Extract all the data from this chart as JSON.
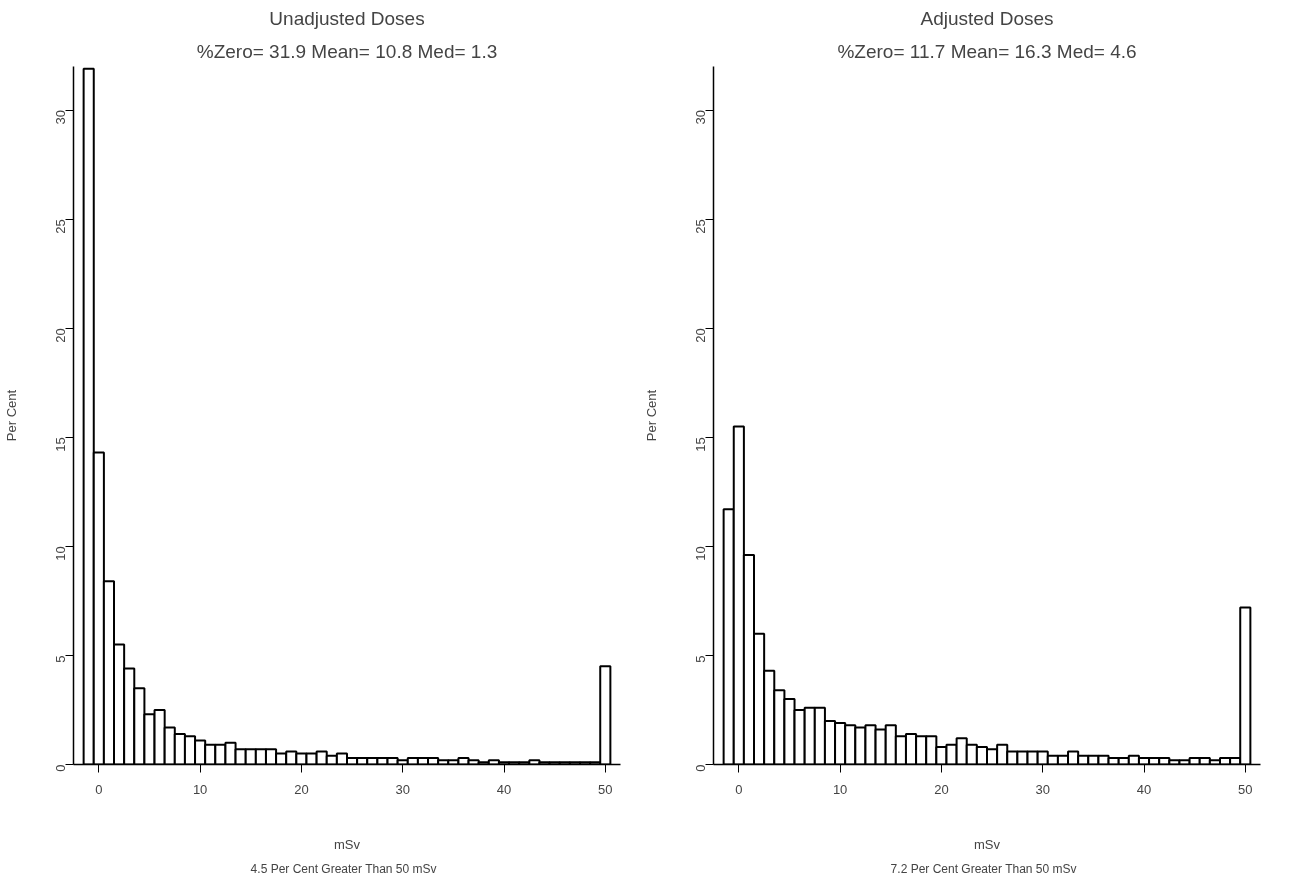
{
  "chart_data": [
    {
      "type": "histogram",
      "title": "Unadjusted Doses",
      "subtitle": "%Zero= 31.9 Mean= 10.8 Med= 1.3",
      "xlabel": "mSv",
      "ylabel": "Per Cent",
      "color": "#ffffff",
      "grid": false,
      "bins": [
        -1.5,
        -0.5,
        0.5,
        1.5,
        2.5,
        3.5,
        4.5,
        5.5,
        6.5,
        7.5,
        8.5,
        9.5,
        10.5,
        11.5,
        12.5,
        13.5,
        14.5,
        15.5,
        16.5,
        17.5,
        18.5,
        19.5,
        20.5,
        21.5,
        22.5,
        23.5,
        24.5,
        25.5,
        26.5,
        27.5,
        28.5,
        29.5,
        30.5,
        31.5,
        32.5,
        33.5,
        34.5,
        35.5,
        36.5,
        37.5,
        38.5,
        39.5,
        40.5,
        41.5,
        42.5,
        43.5,
        44.5,
        45.5,
        46.5,
        47.5,
        48.5,
        49.5,
        50.5
      ],
      "values": [
        31.9,
        14.3,
        8.4,
        5.5,
        4.4,
        3.5,
        2.3,
        2.5,
        1.7,
        1.4,
        1.3,
        1.1,
        0.9,
        0.9,
        1.0,
        0.7,
        0.7,
        0.7,
        0.7,
        0.5,
        0.6,
        0.5,
        0.5,
        0.6,
        0.4,
        0.5,
        0.3,
        0.3,
        0.3,
        0.3,
        0.3,
        0.2,
        0.3,
        0.3,
        0.3,
        0.2,
        0.2,
        0.3,
        0.2,
        0.1,
        0.2,
        0.1,
        0.1,
        0.1,
        0.2,
        0.1,
        0.1,
        0.1,
        0.1,
        0.1,
        0.1,
        4.5
      ],
      "xlim": [
        -2.5,
        51.5
      ],
      "ylim": [
        0,
        32
      ],
      "xticks": [
        0,
        10,
        20,
        30,
        40,
        50
      ],
      "yticks": [
        0,
        5,
        10,
        15,
        20,
        25,
        30
      ],
      "annotations": [
        "4.5 Per Cent Greater Than  50  mSv"
      ]
    },
    {
      "type": "histogram",
      "title": "Adjusted Doses",
      "subtitle": "%Zero= 11.7 Mean= 16.3 Med= 4.6",
      "xlabel": "mSv",
      "ylabel": "Per Cent",
      "color": "#ffffff",
      "grid": false,
      "bins": [
        -1.5,
        -0.5,
        0.5,
        1.5,
        2.5,
        3.5,
        4.5,
        5.5,
        6.5,
        7.5,
        8.5,
        9.5,
        10.5,
        11.5,
        12.5,
        13.5,
        14.5,
        15.5,
        16.5,
        17.5,
        18.5,
        19.5,
        20.5,
        21.5,
        22.5,
        23.5,
        24.5,
        25.5,
        26.5,
        27.5,
        28.5,
        29.5,
        30.5,
        31.5,
        32.5,
        33.5,
        34.5,
        35.5,
        36.5,
        37.5,
        38.5,
        39.5,
        40.5,
        41.5,
        42.5,
        43.5,
        44.5,
        45.5,
        46.5,
        47.5,
        48.5,
        49.5,
        50.5
      ],
      "values": [
        11.7,
        15.5,
        9.6,
        6.0,
        4.3,
        3.4,
        3.0,
        2.5,
        2.6,
        2.6,
        2.0,
        1.9,
        1.8,
        1.7,
        1.8,
        1.6,
        1.8,
        1.3,
        1.4,
        1.3,
        1.3,
        0.8,
        0.9,
        1.2,
        0.9,
        0.8,
        0.7,
        0.9,
        0.6,
        0.6,
        0.6,
        0.6,
        0.4,
        0.4,
        0.6,
        0.4,
        0.4,
        0.4,
        0.3,
        0.3,
        0.4,
        0.3,
        0.3,
        0.3,
        0.2,
        0.2,
        0.3,
        0.3,
        0.2,
        0.3,
        0.3,
        7.2
      ],
      "xlim": [
        -2.5,
        51.5
      ],
      "ylim": [
        0,
        32
      ],
      "xticks": [
        0,
        10,
        20,
        30,
        40,
        50
      ],
      "yticks": [
        0,
        5,
        10,
        15,
        20,
        25,
        30
      ],
      "annotations": [
        "7.2 Per Cent Greater Than  50  mSv"
      ]
    }
  ]
}
